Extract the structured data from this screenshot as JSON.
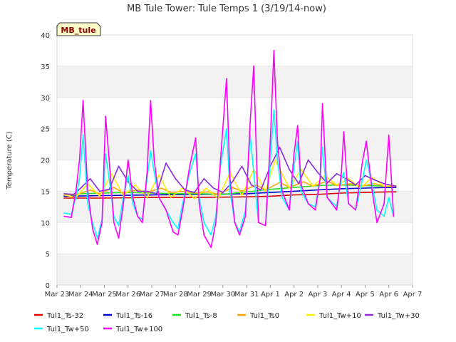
{
  "chart_data": {
    "type": "line",
    "title": "MB Tule Tower: Tule Temps 1 (3/19/14-now)",
    "ylabel": "Temperature (C)",
    "xlabel": "",
    "x_ticks": [
      "Mar 23",
      "Mar 24",
      "Mar 25",
      "Mar 26",
      "Mar 27",
      "Mar 28",
      "Mar 29",
      "Mar 30",
      "Mar 31",
      "Apr 1",
      "Apr 2",
      "Apr 3",
      "Apr 4",
      "Apr 5",
      "Apr 6",
      "Apr 7"
    ],
    "xlim": [
      0,
      15
    ],
    "ylim": [
      0,
      40
    ],
    "y_ticks": [
      0,
      5,
      10,
      15,
      20,
      25,
      30,
      35,
      40
    ],
    "grid": "horizontal bands",
    "legend_position": "bottom",
    "site_label": "MB_tule",
    "series": [
      {
        "name": "Tul1_Ts-32",
        "color": "#dd0000",
        "x": [
          0.3,
          2,
          4,
          6,
          8,
          9,
          10,
          11,
          12,
          13,
          14,
          14.3
        ],
        "values": [
          13.9,
          13.9,
          14.0,
          14.0,
          14.1,
          14.2,
          14.4,
          14.5,
          14.7,
          14.8,
          14.9,
          14.9
        ]
      },
      {
        "name": "Tul1_Ts-16",
        "color": "#0000cc",
        "x": [
          0.3,
          2,
          4,
          6,
          8,
          9,
          10,
          11,
          12,
          13,
          14,
          14.3
        ],
        "values": [
          14.2,
          14.3,
          14.4,
          14.5,
          14.6,
          14.8,
          15.0,
          15.2,
          15.4,
          15.5,
          15.6,
          15.6
        ]
      },
      {
        "name": "Tul1_Ts-8",
        "color": "#22dd22",
        "x": [
          0.3,
          1,
          2,
          3,
          4,
          5,
          6,
          7,
          8,
          9,
          10,
          11,
          12,
          13,
          14,
          14.3
        ],
        "values": [
          14.4,
          14.6,
          14.7,
          14.8,
          14.7,
          14.6,
          14.6,
          14.5,
          14.9,
          15.3,
          15.6,
          15.9,
          16.0,
          15.9,
          15.8,
          15.8
        ]
      },
      {
        "name": "Tul1_Ts0",
        "color": "#ffa500",
        "x": [
          0.3,
          0.8,
          1.4,
          1.8,
          2.4,
          2.8,
          3.4,
          3.8,
          4.4,
          4.8,
          5.4,
          5.8,
          6.4,
          6.8,
          7.4,
          7.8,
          8.4,
          8.8,
          9.4,
          9.8,
          10.4,
          10.8,
          11.4,
          11.8,
          12.4,
          12.8,
          13.4,
          13.8,
          14.3
        ],
        "values": [
          14.5,
          14.4,
          15.2,
          14.6,
          15.6,
          14.7,
          15.2,
          14.8,
          15.5,
          14.8,
          15.0,
          14.7,
          14.9,
          14.5,
          15.6,
          15.0,
          16.0,
          15.2,
          16.4,
          15.6,
          16.5,
          15.8,
          16.6,
          15.9,
          16.2,
          15.8,
          16.2,
          15.8,
          15.8
        ]
      },
      {
        "name": "Tul1_Tw+10",
        "color": "#ffee00",
        "x": [
          0.3,
          0.8,
          1.3,
          1.8,
          2.3,
          2.8,
          3.3,
          3.8,
          4.3,
          4.8,
          5.3,
          5.8,
          6.3,
          6.8,
          7.3,
          7.8,
          8.3,
          8.8,
          9.2,
          9.8,
          10.3,
          10.8,
          11.3,
          11.8,
          12.3,
          12.8,
          13.3,
          13.8,
          14.3
        ],
        "values": [
          14.4,
          14.0,
          16.2,
          14.2,
          17.8,
          14.3,
          16.0,
          14.0,
          17.6,
          14.0,
          15.5,
          13.8,
          15.5,
          13.8,
          18.0,
          14.3,
          18.5,
          15.0,
          20.0,
          15.5,
          18.5,
          15.8,
          17.5,
          16.0,
          17.0,
          15.5,
          17.2,
          15.8,
          15.9
        ]
      },
      {
        "name": "Tul1_Tw+30",
        "color": "#8a2be2",
        "x": [
          0.3,
          0.7,
          1.0,
          1.4,
          1.8,
          2.2,
          2.6,
          3.0,
          3.4,
          3.8,
          4.2,
          4.6,
          5.0,
          5.4,
          5.8,
          6.2,
          6.6,
          7.0,
          7.4,
          7.8,
          8.2,
          8.6,
          9.0,
          9.4,
          9.8,
          10.2,
          10.6,
          11.0,
          11.4,
          11.8,
          12.2,
          12.6,
          13.0,
          13.4,
          13.8,
          14.3
        ],
        "values": [
          14.6,
          14.5,
          15.5,
          17.0,
          15.0,
          15.3,
          19.0,
          16.5,
          15.0,
          15.0,
          14.6,
          19.5,
          17.0,
          15.2,
          14.8,
          17.0,
          15.5,
          14.8,
          16.5,
          19.0,
          16.0,
          15.2,
          19.0,
          22.0,
          18.5,
          16.2,
          20.0,
          18.0,
          16.3,
          17.8,
          17.0,
          16.0,
          17.5,
          16.8,
          16.2,
          15.8
        ]
      },
      {
        "name": "Tul1_Tw+50",
        "color": "#00ffff",
        "x": [
          0.3,
          0.6,
          0.8,
          0.95,
          1.1,
          1.3,
          1.5,
          1.7,
          1.9,
          2.05,
          2.2,
          2.4,
          2.6,
          2.8,
          3.0,
          3.2,
          3.4,
          3.6,
          3.8,
          3.95,
          4.1,
          4.3,
          4.6,
          4.9,
          5.1,
          5.3,
          5.6,
          5.85,
          6.0,
          6.2,
          6.5,
          6.7,
          6.9,
          7.15,
          7.3,
          7.5,
          7.7,
          7.95,
          8.15,
          8.3,
          8.5,
          8.8,
          9.0,
          9.15,
          9.3,
          9.5,
          9.8,
          10.0,
          10.15,
          10.3,
          10.6,
          10.9,
          11.1,
          11.2,
          11.4,
          11.8,
          12.0,
          12.1,
          12.3,
          12.6,
          12.9,
          13.05,
          13.3,
          13.5,
          13.8,
          14.0,
          14.2
        ],
        "values": [
          11.5,
          11.3,
          14.0,
          17.0,
          24.0,
          13.0,
          10.0,
          7.5,
          10.5,
          21.0,
          17.0,
          11.0,
          9.5,
          14.0,
          17.5,
          13.0,
          11.0,
          10.5,
          17.0,
          21.5,
          18.0,
          14.0,
          12.0,
          10.0,
          9.0,
          13.0,
          18.0,
          21.0,
          14.0,
          10.0,
          8.0,
          11.0,
          19.0,
          25.0,
          15.0,
          10.0,
          8.5,
          12.0,
          24.0,
          18.0,
          10.0,
          9.5,
          20.0,
          28.0,
          20.0,
          14.0,
          12.0,
          19.0,
          23.0,
          15.0,
          13.0,
          12.5,
          17.0,
          22.0,
          14.0,
          12.5,
          17.0,
          18.0,
          13.0,
          12.0,
          17.0,
          20.0,
          16.0,
          12.0,
          11.0,
          14.0,
          11.0
        ]
      },
      {
        "name": "Tul1_Tw+100",
        "color": "#ff00ff",
        "x": [
          0.3,
          0.6,
          0.8,
          0.95,
          1.1,
          1.3,
          1.5,
          1.7,
          1.9,
          2.05,
          2.2,
          2.4,
          2.6,
          2.8,
          3.0,
          3.2,
          3.4,
          3.6,
          3.8,
          3.95,
          4.1,
          4.3,
          4.6,
          4.9,
          5.1,
          5.3,
          5.6,
          5.85,
          6.0,
          6.2,
          6.5,
          6.7,
          6.9,
          7.15,
          7.3,
          7.5,
          7.7,
          7.95,
          8.15,
          8.3,
          8.5,
          8.8,
          9.0,
          9.15,
          9.3,
          9.5,
          9.8,
          10.0,
          10.15,
          10.3,
          10.6,
          10.9,
          11.1,
          11.2,
          11.4,
          11.8,
          12.0,
          12.1,
          12.3,
          12.6,
          12.9,
          13.05,
          13.3,
          13.5,
          13.8,
          14.0,
          14.2
        ],
        "values": [
          11.0,
          10.8,
          15.0,
          20.0,
          29.5,
          15.0,
          9.0,
          6.5,
          10.0,
          27.0,
          20.0,
          10.0,
          7.5,
          13.0,
          20.0,
          14.0,
          11.0,
          10.0,
          18.0,
          29.5,
          20.0,
          14.0,
          12.0,
          8.5,
          8.0,
          12.0,
          19.0,
          23.5,
          13.0,
          8.0,
          6.0,
          10.0,
          20.0,
          33.0,
          17.0,
          10.0,
          8.0,
          11.0,
          26.0,
          35.0,
          10.0,
          9.5,
          23.0,
          37.5,
          23.0,
          15.0,
          12.0,
          21.0,
          25.5,
          16.0,
          13.0,
          12.0,
          17.0,
          29.0,
          14.0,
          12.0,
          18.0,
          24.5,
          13.0,
          12.0,
          20.0,
          23.0,
          15.0,
          10.0,
          13.0,
          24.0,
          11.0
        ]
      }
    ]
  }
}
